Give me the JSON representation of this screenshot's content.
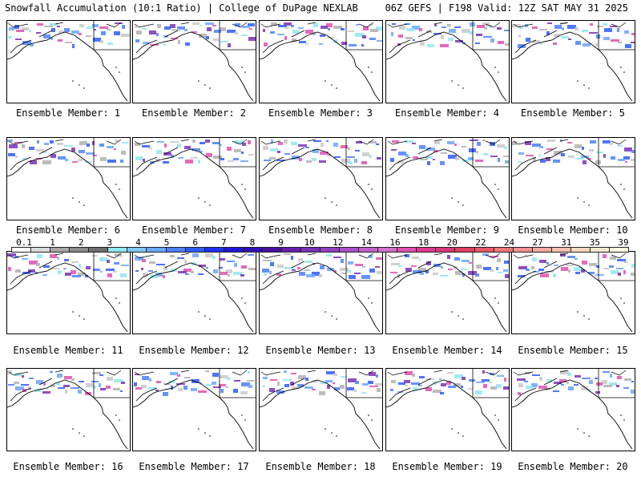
{
  "header": {
    "left": "Snowfall Accumulation (10:1 Ratio) | College of DuPage NEXLAB",
    "right": "06Z GEFS | F198 Valid: 12Z SAT MAY 31 2025"
  },
  "panels": [
    {
      "label": "Ensemble Member: 1"
    },
    {
      "label": "Ensemble Member: 2"
    },
    {
      "label": "Ensemble Member: 3"
    },
    {
      "label": "Ensemble Member: 4"
    },
    {
      "label": "Ensemble Member: 5"
    },
    {
      "label": "Ensemble Member: 6"
    },
    {
      "label": "Ensemble Member: 7"
    },
    {
      "label": "Ensemble Member: 8"
    },
    {
      "label": "Ensemble Member: 9"
    },
    {
      "label": "Ensemble Member: 10"
    },
    {
      "label": "Ensemble Member: 11"
    },
    {
      "label": "Ensemble Member: 12"
    },
    {
      "label": "Ensemble Member: 13"
    },
    {
      "label": "Ensemble Member: 14"
    },
    {
      "label": "Ensemble Member: 15"
    },
    {
      "label": "Ensemble Member: 16"
    },
    {
      "label": "Ensemble Member: 17"
    },
    {
      "label": "Ensemble Member: 18"
    },
    {
      "label": "Ensemble Member: 19"
    },
    {
      "label": "Ensemble Member: 20"
    }
  ],
  "colorbar": {
    "labels": [
      "0.1",
      "1",
      "2",
      "3",
      "4",
      "5",
      "6",
      "7",
      "8",
      "9",
      "10",
      "12",
      "14",
      "16",
      "18",
      "20",
      "22",
      "24",
      "27",
      "31",
      "35",
      "39"
    ],
    "colors": [
      "#ffffff",
      "#d9d9d9",
      "#a6a6a6",
      "#8a8a8a",
      "#6e6e6e",
      "#8fe8f0",
      "#80c8ff",
      "#6aa6ff",
      "#4a80ff",
      "#2e5aff",
      "#1f30f0",
      "#2018d8",
      "#3010b8",
      "#4a10a0",
      "#6420a8",
      "#7a30b8",
      "#9040c0",
      "#a850c8",
      "#c060c8",
      "#d070c8",
      "#e050b0",
      "#e03890",
      "#d83878",
      "#e04060",
      "#e85868",
      "#f07878",
      "#f09090",
      "#f4a8a0",
      "#f8c0b0",
      "#fad8c0",
      "#fce8d0",
      "#fff4e0"
    ]
  }
}
